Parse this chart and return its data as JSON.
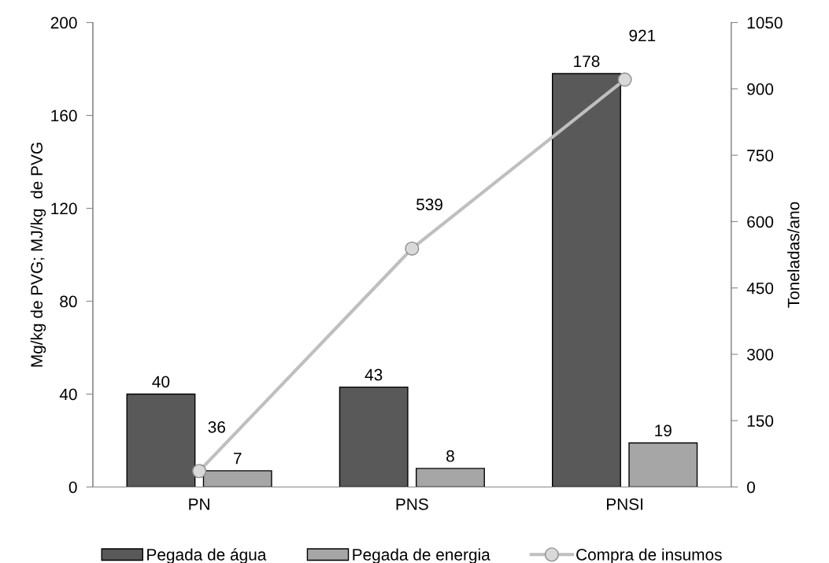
{
  "chart_data": {
    "type": "bar",
    "categories": [
      "PN",
      "PNS",
      "PNSI"
    ],
    "ylabel": "Mg/kg de PVG; MJ/kg  de PVG",
    "y2label": "Toneladas/ano",
    "series": [
      {
        "name": "Pegada de água",
        "color": "#595959",
        "values": [
          40,
          43,
          178
        ]
      },
      {
        "name": "Pegada de energia",
        "color": "#a6a6a6",
        "values": [
          7,
          8,
          19
        ]
      },
      {
        "name": "Compra de insumos",
        "type": "line",
        "axis": "y2",
        "color": "#bfbfbf",
        "marker": "circle",
        "values": [
          36,
          539,
          921
        ]
      }
    ],
    "ylim": [
      0,
      200
    ],
    "yticks": [
      0,
      40,
      80,
      120,
      160,
      200
    ],
    "y2lim": [
      0,
      1050
    ],
    "y2ticks": [
      0,
      150,
      300,
      450,
      600,
      750,
      900,
      1050
    ],
    "data_labels": true,
    "grid": false,
    "legend": "bottom"
  }
}
